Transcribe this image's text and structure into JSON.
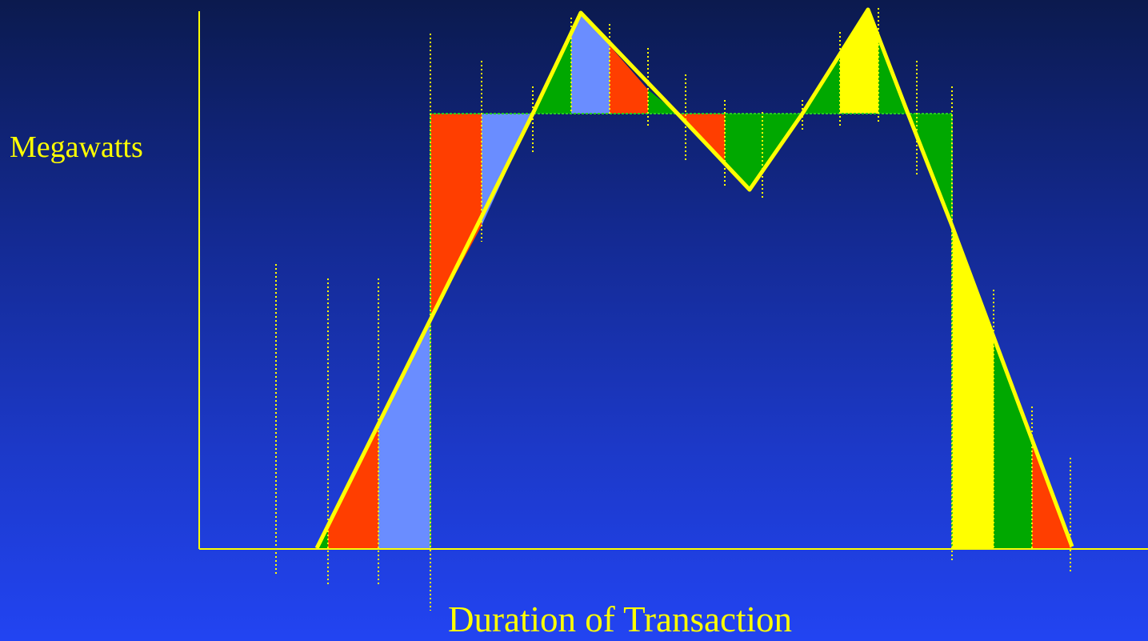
{
  "slide": {
    "y_axis_label": "Megawatts",
    "x_axis_label": "Duration of Transaction"
  },
  "colors": {
    "axis": "#ffff00",
    "profile_line": "#ffff00",
    "guide_line": "#ffff00",
    "block_outline": "#22cc22",
    "red": "#ff3e00",
    "light_blue": "#6a8dff",
    "green": "#00a800",
    "yellow": "#ffff00"
  }
}
